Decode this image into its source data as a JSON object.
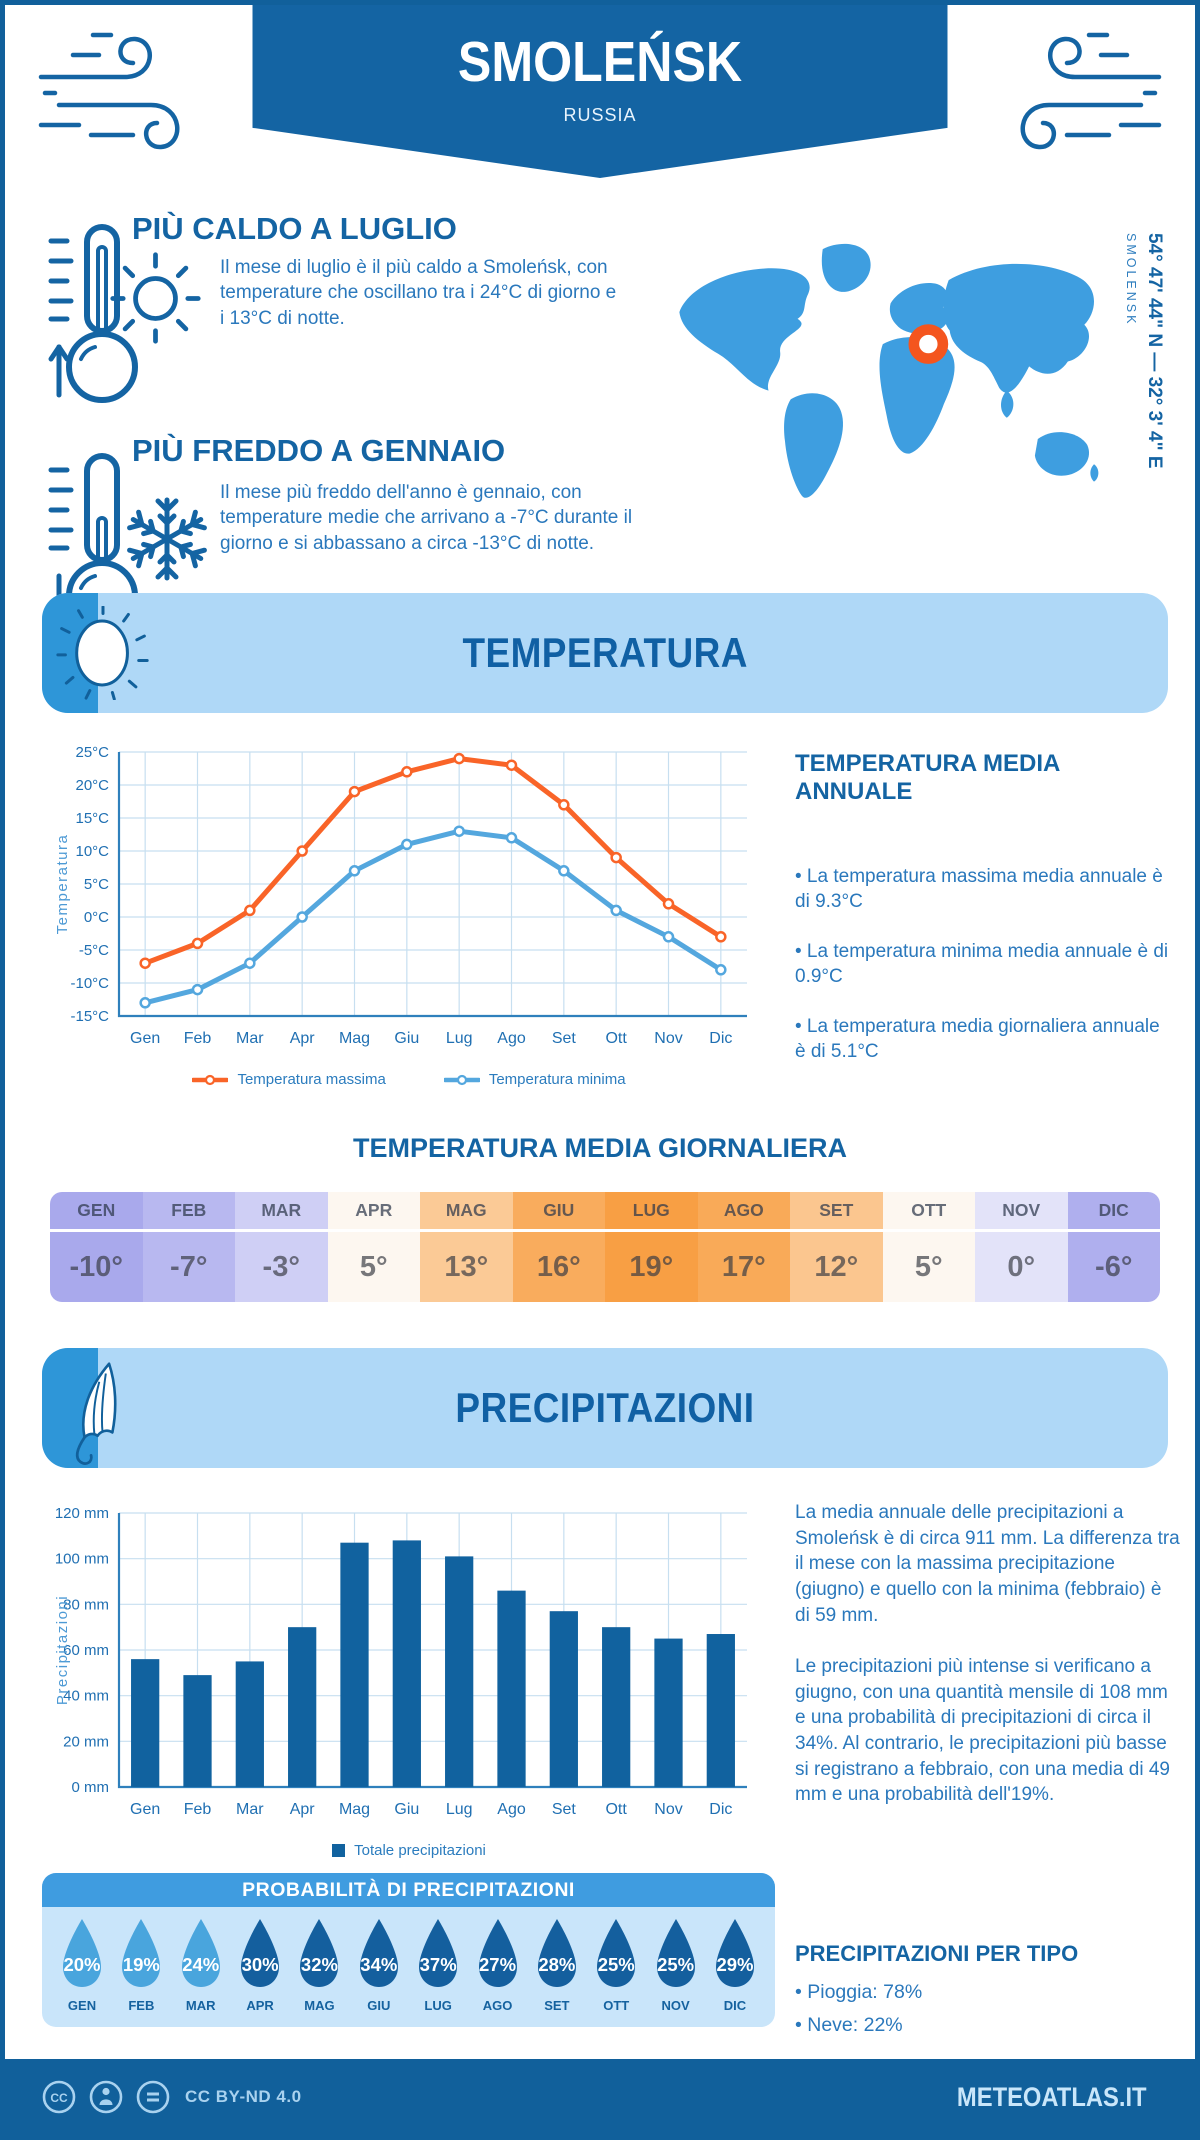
{
  "header": {
    "title": "SMOLEŃSK",
    "subtitle": "RUSSIA"
  },
  "location": {
    "coordinates": "54° 47' 44\" N — 32° 3' 4\" E",
    "name": "SMOLENSK"
  },
  "highlights": {
    "hot": {
      "title": "PIÙ CALDO A LUGLIO",
      "text": "Il mese di luglio è il più caldo a Smoleńsk, con temperature che oscillano tra i 24°C di giorno e i 13°C di notte."
    },
    "cold": {
      "title": "PIÙ FREDDO A GENNAIO",
      "text": "Il mese più freddo dell'anno è gennaio, con temperature medie che arrivano a -7°C durante il giorno e si abbassano a circa -13°C di notte."
    }
  },
  "temperature_section": {
    "banner": "TEMPERATURA",
    "annual": {
      "title": "TEMPERATURA MEDIA ANNUALE",
      "bullets": [
        "• La temperatura massima media annuale è di 9.3°C",
        "• La temperatura minima media annuale è di 0.9°C",
        "• La temperatura media giornaliera annuale è di 5.1°C"
      ]
    },
    "daily_title": "TEMPERATURA MEDIA GIORNALIERA",
    "table": {
      "months": [
        "GEN",
        "FEB",
        "MAR",
        "APR",
        "MAG",
        "GIU",
        "LUG",
        "AGO",
        "SET",
        "OTT",
        "NOV",
        "DIC"
      ],
      "values": [
        "-10°",
        "-7°",
        "-3°",
        "5°",
        "13°",
        "16°",
        "19°",
        "17°",
        "12°",
        "5°",
        "0°",
        "-6°"
      ],
      "cell_colors": [
        "#A9A9EC",
        "#B8B8F0",
        "#CFCFF5",
        "#FDF7F0",
        "#FBCA96",
        "#F9AC5D",
        "#F89F44",
        "#F9AA58",
        "#FBC68F",
        "#FDF7F0",
        "#E3E3F9",
        "#AFAFEE"
      ]
    }
  },
  "precipitation_section": {
    "banner": "PRECIPITAZIONI",
    "text1": "La media annuale delle precipitazioni a Smoleńsk è di circa 911 mm. La differenza tra il mese con la massima precipitazione (giugno) e quello con la minima (febbraio) è di 59 mm.",
    "text2": "Le precipitazioni più intense si verificano a giugno, con una quantità mensile di 108 mm e una probabilità di precipitazioni di circa il 34%. Al contrario, le precipitazioni più basse si registrano a febbraio, con una media di 49 mm e una probabilità dell'19%.",
    "probability": {
      "title": "PROBABILITÀ DI PRECIPITAZIONI",
      "months": [
        "GEN",
        "FEB",
        "MAR",
        "APR",
        "MAG",
        "GIU",
        "LUG",
        "AGO",
        "SET",
        "OTT",
        "NOV",
        "DIC"
      ],
      "values": [
        "20%",
        "19%",
        "24%",
        "30%",
        "32%",
        "34%",
        "37%",
        "27%",
        "28%",
        "25%",
        "25%",
        "29%"
      ],
      "light_count": 3
    },
    "by_type": {
      "title": "PRECIPITAZIONI PER TIPO",
      "bullets": [
        "• Pioggia: 78%",
        "• Neve: 22%"
      ]
    }
  },
  "footer": {
    "license": "CC BY-ND 4.0",
    "brand": "METEOATLAS.IT"
  },
  "colors": {
    "dark_blue": "#1464A3",
    "deep_blue": "#11609B",
    "text_blue": "#2A78BC",
    "light_banner": "#AFD8F7",
    "strip_blue": "#2E96D8",
    "map_blue": "#3E9EE0",
    "marker_orange": "#F4551E",
    "max_line": "#F96428",
    "min_line": "#54A7DE",
    "bar": "#11629F",
    "drop_light": "#49A5DD",
    "drop_dark": "#145F9E",
    "grid": "#C7DFF0",
    "axis": "#2F80BC",
    "tick_text": "#1F6FB2",
    "axis_label": "#4D9AD5"
  },
  "chart_data": [
    {
      "type": "line",
      "categories": [
        "Gen",
        "Feb",
        "Mar",
        "Apr",
        "Mag",
        "Giu",
        "Lug",
        "Ago",
        "Set",
        "Ott",
        "Nov",
        "Dic"
      ],
      "series": [
        {
          "name": "Temperatura massima",
          "color": "#F96428",
          "values": [
            -7,
            -4,
            1,
            10,
            19,
            22,
            24,
            23,
            17,
            9,
            2,
            -3
          ]
        },
        {
          "name": "Temperatura minima",
          "color": "#54A7DE",
          "values": [
            -13,
            -11,
            -7,
            0,
            7,
            11,
            13,
            12,
            7,
            1,
            -3,
            -8
          ]
        }
      ],
      "title": "",
      "xlabel": "",
      "ylabel": "Temperatura",
      "ylim": [
        -15,
        25
      ],
      "ytick_step": 5,
      "ytick_suffix": "°C",
      "grid": true,
      "legend_position": "bottom"
    },
    {
      "type": "bar",
      "categories": [
        "Gen",
        "Feb",
        "Mar",
        "Apr",
        "Mag",
        "Giu",
        "Lug",
        "Ago",
        "Set",
        "Ott",
        "Nov",
        "Dic"
      ],
      "values": [
        56,
        49,
        55,
        70,
        107,
        108,
        101,
        86,
        77,
        70,
        65,
        67
      ],
      "title": "",
      "xlabel": "",
      "ylabel": "Precipitazioni",
      "ylim": [
        0,
        120
      ],
      "ytick_step": 20,
      "ytick_suffix": " mm",
      "grid": true,
      "bar_color": "#11629F",
      "legend": "Totale precipitazioni",
      "legend_position": "bottom"
    }
  ]
}
